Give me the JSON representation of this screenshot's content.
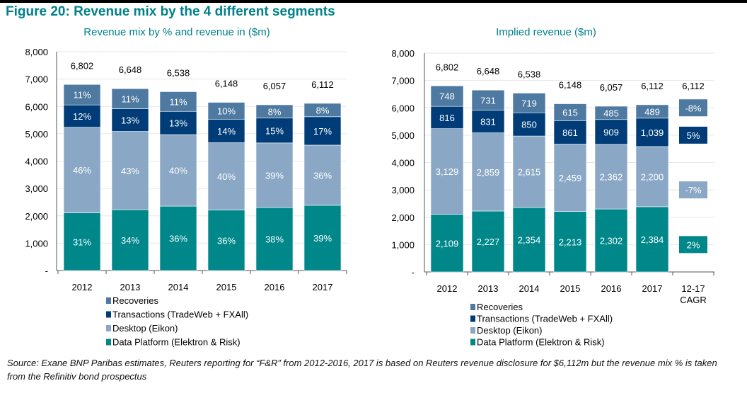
{
  "title": "Figure 20: Revenue mix by the 4 different segments",
  "source": "Source:  Exane BNP Paribas estimates, Reuters reporting for “F&R” from 2012-2016, 2017 is based on Reuters revenue disclosure for $6,112m but the revenue mix % is taken from the Refinitiv bond prospectus",
  "colors": {
    "recoveries": "#4e79a0",
    "transactions": "#003d78",
    "desktop": "#8aa8c5",
    "data_platform": "#00878a",
    "title": "#00808a"
  },
  "chart_data": [
    {
      "type": "bar",
      "stacked": true,
      "title": "Revenue mix by % and revenue in ($m)",
      "categories": [
        "2012",
        "2013",
        "2014",
        "2015",
        "2016",
        "2017"
      ],
      "ylim": [
        0,
        8000
      ],
      "yticks": [
        "-",
        "1,000",
        "2,000",
        "3,000",
        "4,000",
        "5,000",
        "6,000",
        "7,000",
        "8,000"
      ],
      "totals": [
        "6,802",
        "6,648",
        "6,538",
        "6,148",
        "6,057",
        "6,112"
      ],
      "series": [
        {
          "name": "Data Platform (Elektron & Risk)",
          "key": "data_platform",
          "values": [
            2109,
            2227,
            2354,
            2213,
            2302,
            2384
          ],
          "labels": [
            "31%",
            "34%",
            "36%",
            "36%",
            "38%",
            "39%"
          ]
        },
        {
          "name": "Desktop (Eikon)",
          "key": "desktop",
          "values": [
            3129,
            2859,
            2615,
            2459,
            2362,
            2200
          ],
          "labels": [
            "46%",
            "43%",
            "40%",
            "40%",
            "39%",
            "36%"
          ]
        },
        {
          "name": "Transactions (TradeWeb + FXAll)",
          "key": "transactions",
          "values": [
            816,
            831,
            850,
            861,
            909,
            1039
          ],
          "labels": [
            "12%",
            "13%",
            "13%",
            "14%",
            "15%",
            "17%"
          ]
        },
        {
          "name": "Recoveries",
          "key": "recoveries",
          "values": [
            748,
            731,
            719,
            615,
            485,
            489
          ],
          "labels": [
            "11%",
            "11%",
            "11%",
            "10%",
            "8%",
            "8%"
          ]
        }
      ],
      "legend": [
        "Recoveries",
        "Transactions (TradeWeb + FXAll)",
        "Desktop (Eikon)",
        "Data Platform (Elektron & Risk)"
      ],
      "legend_position": "bottom"
    },
    {
      "type": "bar",
      "stacked": true,
      "title": "Implied revenue ($m)",
      "categories": [
        "2012",
        "2013",
        "2014",
        "2015",
        "2016",
        "2017"
      ],
      "extra_category": [
        "12-17",
        "CAGR"
      ],
      "ylim": [
        0,
        8000
      ],
      "yticks": [
        "-",
        "1,000",
        "2,000",
        "3,000",
        "4,000",
        "5,000",
        "6,000",
        "7,000",
        "8,000"
      ],
      "totals": [
        "6,802",
        "6,648",
        "6,538",
        "6,148",
        "6,057",
        "6,112",
        "6,112"
      ],
      "series": [
        {
          "name": "Data Platform (Elektron & Risk)",
          "key": "data_platform",
          "values": [
            2109,
            2227,
            2354,
            2213,
            2302,
            2384
          ],
          "labels": [
            "2,109",
            "2,227",
            "2,354",
            "2,213",
            "2,302",
            "2,384"
          ],
          "cagr": "2%"
        },
        {
          "name": "Desktop (Eikon)",
          "key": "desktop",
          "values": [
            3129,
            2859,
            2615,
            2459,
            2362,
            2200
          ],
          "labels": [
            "3,129",
            "2,859",
            "2,615",
            "2,459",
            "2,362",
            "2,200"
          ],
          "cagr": "-7%"
        },
        {
          "name": "Transactions (TradeWeb + FXAll)",
          "key": "transactions",
          "values": [
            816,
            831,
            850,
            861,
            909,
            1039
          ],
          "labels": [
            "816",
            "831",
            "850",
            "861",
            "909",
            "1,039"
          ],
          "cagr": "5%"
        },
        {
          "name": "Recoveries",
          "key": "recoveries",
          "values": [
            748,
            731,
            719,
            615,
            485,
            489
          ],
          "labels": [
            "748",
            "731",
            "719",
            "615",
            "485",
            "489"
          ],
          "cagr": "-8%"
        }
      ],
      "legend": [
        "Recoveries",
        "Transactions (TradeWeb + FXAll)",
        "Desktop (Eikon)",
        "Data Platform (Elektron & Risk)"
      ],
      "legend_position": "bottom"
    }
  ]
}
